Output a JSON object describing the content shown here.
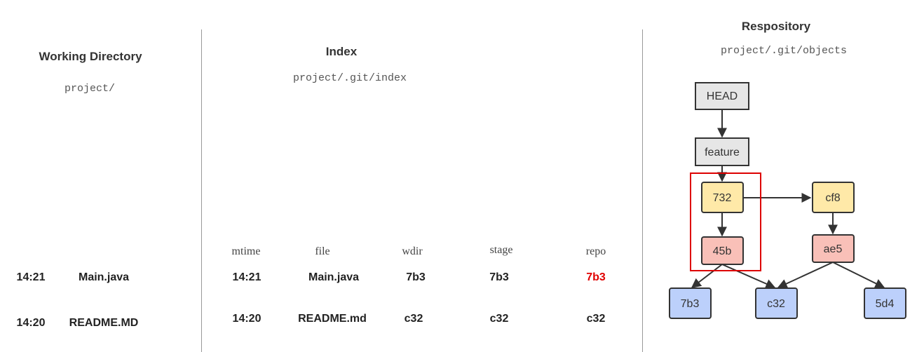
{
  "working_directory": {
    "title": "Working Directory",
    "path": "project/",
    "rows": [
      {
        "mtime": "14:21",
        "file": "Main.java"
      },
      {
        "mtime": "14:20",
        "file": "README.MD"
      }
    ]
  },
  "index": {
    "title": "Index",
    "path": "project/.git/index",
    "columns": [
      "mtime",
      "file",
      "wdir",
      "stage",
      "repo"
    ],
    "rows": [
      {
        "mtime": "14:21",
        "file": "Main.java",
        "wdir": "7b3",
        "stage": "7b3",
        "repo": "7b3"
      },
      {
        "mtime": "14:20",
        "file": "README.md",
        "wdir": "c32",
        "stage": "c32",
        "repo": "c32"
      }
    ]
  },
  "repository": {
    "title": "Respository",
    "path": "project/.git/objects",
    "nodes": {
      "head": "HEAD",
      "feature": "feature",
      "c732": "732",
      "cf8": "cf8",
      "t45b": "45b",
      "tae5": "ae5",
      "b7b3": "7b3",
      "bc32": "c32",
      "b5d4": "5d4"
    }
  },
  "colors": {
    "ref_fill": "#e6e6e6",
    "commit_fill": "#ffe9a8",
    "tree_fill": "#f9c0b8",
    "blob_fill": "#bcd0fb",
    "highlight_box": "#dd0000",
    "changed_value": "#e00000"
  }
}
